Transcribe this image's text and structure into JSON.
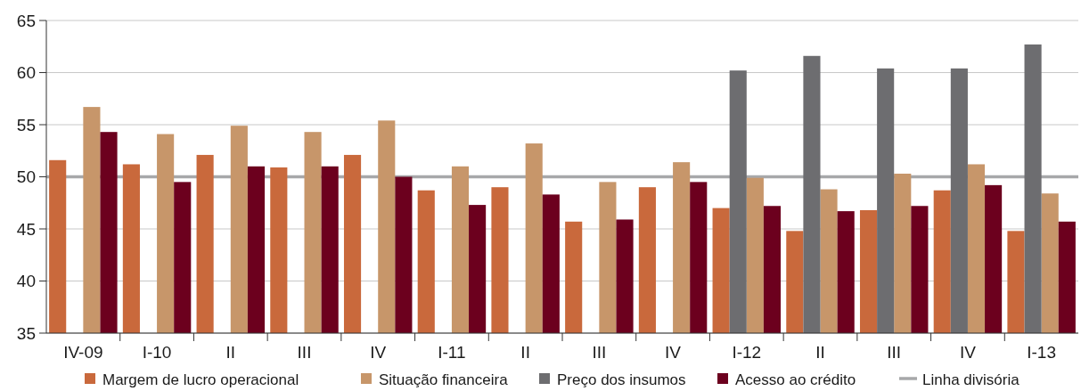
{
  "chart_data": {
    "type": "bar",
    "categories": [
      "IV-09",
      "I-10",
      "II",
      "III",
      "IV",
      "I-11",
      "II",
      "III",
      "IV",
      "I-12",
      "II",
      "III",
      "IV",
      "I-13"
    ],
    "series": [
      {
        "name": "Margem de lucro operacional",
        "color": "#c9693c",
        "values": [
          51.6,
          51.2,
          52.1,
          50.9,
          52.1,
          48.7,
          49.0,
          45.7,
          49.0,
          47.0,
          44.8,
          46.8,
          48.7,
          44.8
        ]
      },
      {
        "name": "Situação financeira",
        "color": "#c7966a",
        "values": [
          56.7,
          54.1,
          54.9,
          54.3,
          55.4,
          51.0,
          53.2,
          49.5,
          51.4,
          49.9,
          48.8,
          50.3,
          51.2,
          48.4
        ]
      },
      {
        "name": "Preço dos insumos",
        "color": "#6d6d70",
        "values": [
          null,
          null,
          null,
          null,
          null,
          null,
          null,
          null,
          null,
          60.2,
          61.6,
          60.4,
          60.4,
          62.7
        ]
      },
      {
        "name": "Acesso ao crédito",
        "color": "#6c001e",
        "values": [
          54.3,
          49.5,
          51.0,
          51.0,
          50.0,
          47.3,
          48.3,
          45.9,
          49.5,
          47.2,
          46.7,
          47.2,
          49.2,
          45.7
        ]
      }
    ],
    "ylim": [
      35,
      65
    ],
    "yticks": [
      35,
      40,
      45,
      50,
      55,
      60,
      65
    ],
    "grid": "y",
    "legend": "bottom",
    "ref_lines": [
      {
        "axis": "y",
        "value": 50,
        "label": "Linha divisória",
        "color": "#a7a8aa"
      }
    ]
  }
}
